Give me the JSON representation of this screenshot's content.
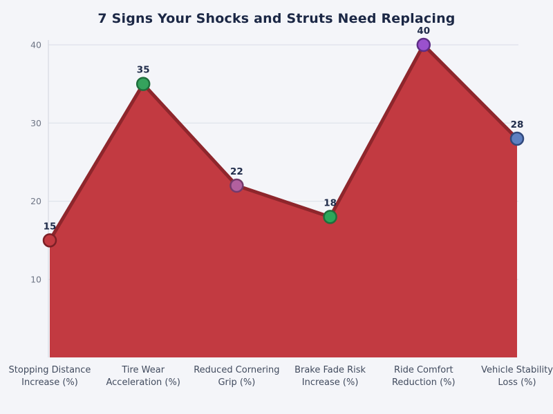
{
  "page": {
    "background": "#f4f5f9"
  },
  "chart_data": {
    "type": "area",
    "title": "7 Signs Your Shocks and Struts Need Replacing",
    "categories": [
      "Stopping Distance\nIncrease (%)",
      "Tire Wear\nAcceleration (%)",
      "Reduced Cornering\nGrip (%)",
      "Brake Fade Risk\nIncrease (%)",
      "Ride Comfort\nReduction (%)",
      "Vehicle Stability\nLoss (%)"
    ],
    "values": [
      15,
      35,
      22,
      18,
      40,
      28
    ],
    "value_labels": [
      "15",
      "35",
      "22",
      "18",
      "40",
      "28"
    ],
    "yticks": [
      10,
      20,
      30,
      40
    ],
    "ylim": [
      0,
      42
    ],
    "xlabel": "",
    "ylabel": "",
    "grid": "horizontal",
    "legend": "none",
    "style": {
      "background": "#f4f5f9",
      "area_fill": "#c23a41",
      "line_color": "#8e262c",
      "grid_color": "#dde1ea",
      "axis_color": "#d5d9e2",
      "title_color": "#1b2745",
      "tick_label_color": "#6e7585",
      "category_label_color": "#414b5e",
      "value_label_color": "#202c4a",
      "marker_fills": [
        "#c23a41",
        "#35a35d",
        "#b2609f",
        "#2ca75a",
        "#9a51cd",
        "#5e80c1"
      ],
      "marker_strokes": [
        "#7c1f26",
        "#1f6e3c",
        "#73396b",
        "#1f6e3c",
        "#5d2d85",
        "#31497c"
      ]
    }
  }
}
